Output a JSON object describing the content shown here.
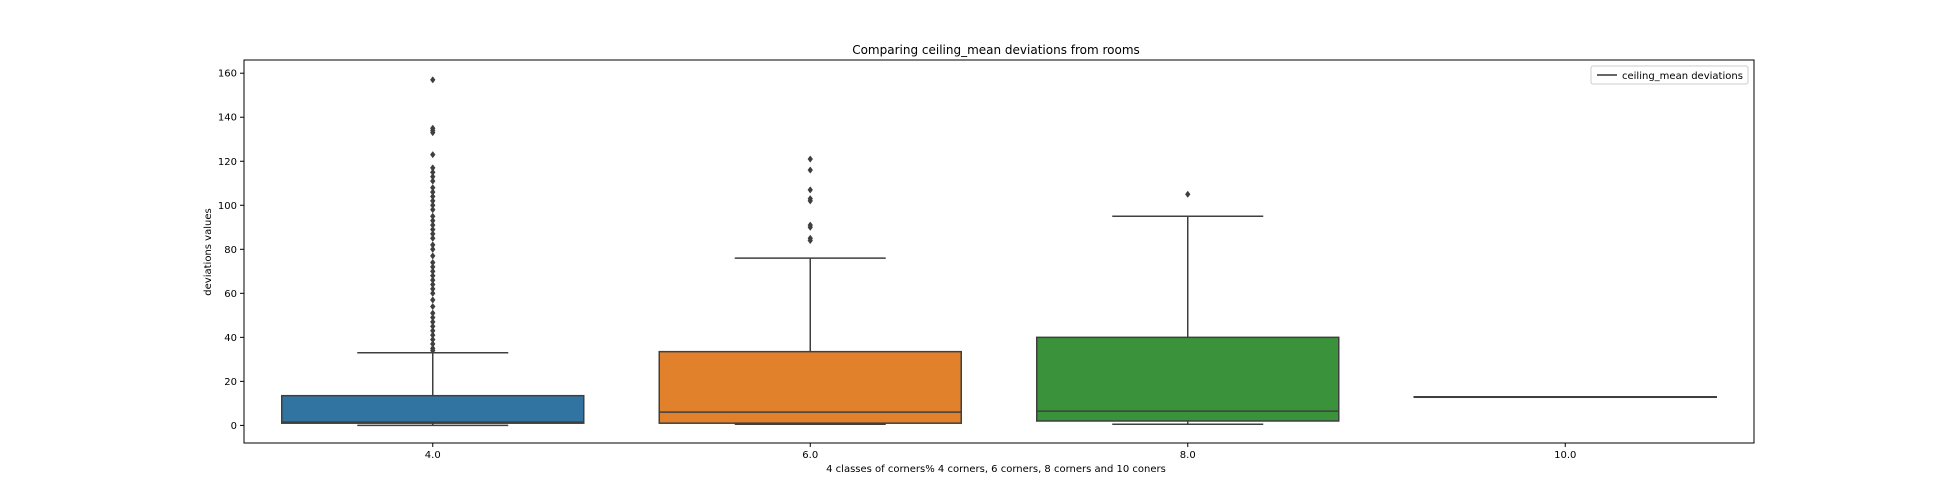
{
  "chart_data": {
    "type": "box",
    "title": "Comparing ceiling_mean deviations from rooms",
    "xlabel": "4 classes of corners% 4 corners, 6 corners, 8 corners and 10 coners",
    "ylabel": "deviations values",
    "ylim": [
      -8,
      166
    ],
    "yticks": [
      0,
      20,
      40,
      60,
      80,
      100,
      120,
      140,
      160
    ],
    "categories": [
      "4.0",
      "6.0",
      "8.0",
      "10.0"
    ],
    "legend": {
      "label": "ceiling_mean deviations",
      "placement": "top-right"
    },
    "grid": false,
    "boxes": [
      {
        "category": "4.0",
        "color": "#3274a1",
        "whisker_low": 0,
        "q1": 1,
        "median": 1.5,
        "q3": 13.5,
        "whisker_high": 33,
        "outliers": [
          34,
          35,
          37,
          39,
          41,
          43,
          45,
          47,
          49,
          51,
          54,
          57,
          60,
          62,
          64,
          66,
          68,
          70,
          72,
          74,
          77,
          80,
          82,
          85,
          87,
          89,
          91,
          93,
          95,
          98,
          100,
          102,
          104,
          106,
          108,
          111,
          113,
          115,
          117,
          123,
          133,
          134,
          135,
          157
        ]
      },
      {
        "category": "6.0",
        "color": "#e1812c",
        "whisker_low": 0.5,
        "q1": 1,
        "median": 6,
        "q3": 33.5,
        "whisker_high": 76,
        "outliers": [
          84,
          85,
          90,
          91,
          102,
          103,
          107,
          116,
          121
        ]
      },
      {
        "category": "8.0",
        "color": "#3a923a",
        "whisker_low": 0.5,
        "q1": 2,
        "median": 6.5,
        "q3": 40,
        "whisker_high": 95,
        "outliers": [
          105
        ]
      },
      {
        "category": "10.0",
        "color": "#c03d3e",
        "whisker_low": 13,
        "q1": 13,
        "median": 13,
        "q3": 13,
        "whisker_high": 13,
        "outliers": []
      }
    ]
  }
}
